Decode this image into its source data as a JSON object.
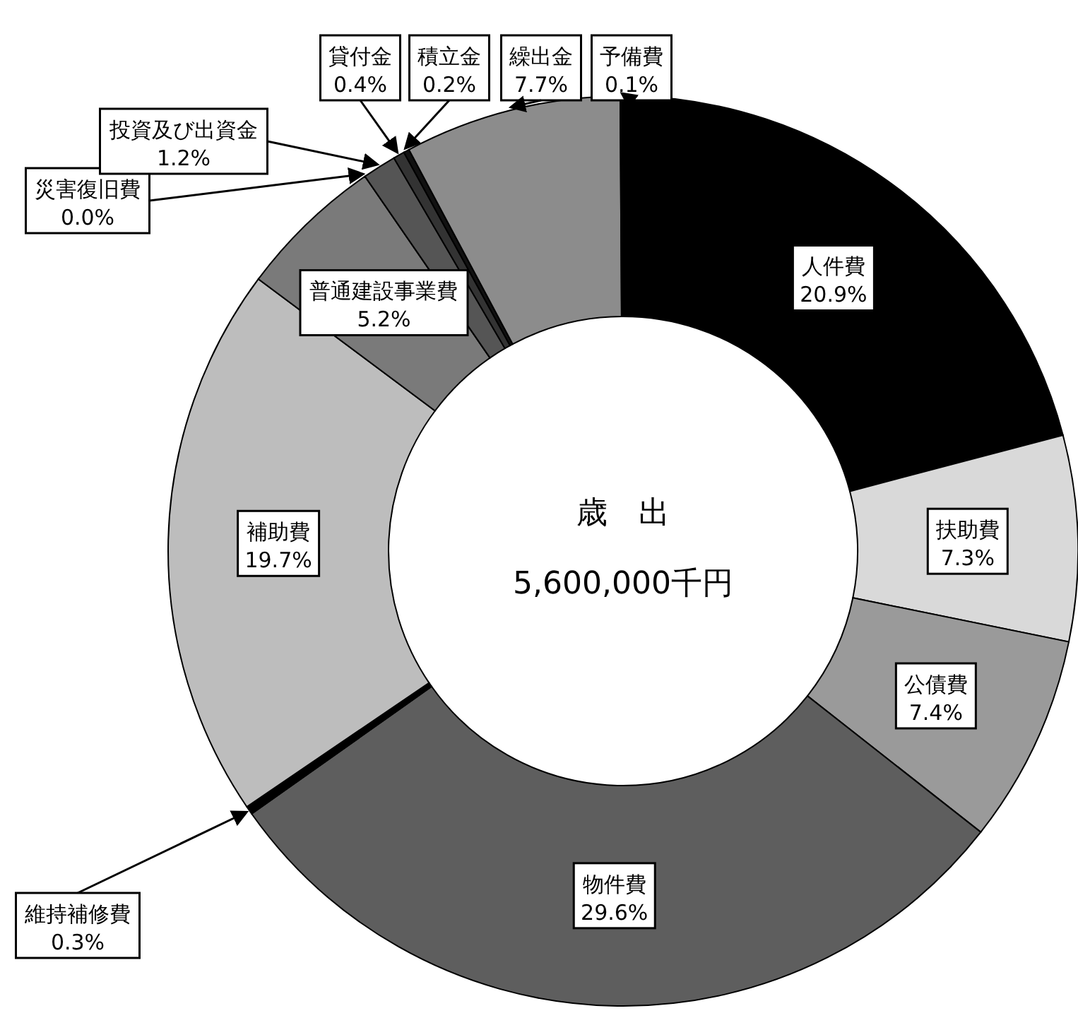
{
  "chart_data": {
    "type": "donut",
    "title": "歳　出",
    "annotations": [
      "5,600,000千円"
    ],
    "categories": [
      "人件費",
      "扶助費",
      "公債費",
      "物件費",
      "維持補修費",
      "補助費",
      "普通建設事業費",
      "災害復旧費",
      "投資及び出資金",
      "貸付金",
      "積立金",
      "繰出金",
      "予備費"
    ],
    "values": [
      20.9,
      7.3,
      7.4,
      29.6,
      0.3,
      19.7,
      5.2,
      0.0,
      1.2,
      0.4,
      0.2,
      7.7,
      0.1
    ],
    "colors": [
      "#000000",
      "#d9d9d9",
      "#9a9a9a",
      "#5e5e5e",
      "#000000",
      "#bdbdbd",
      "#7a7a7a",
      "#444444",
      "#555555",
      "#333333",
      "#111111",
      "#8c8c8c",
      "#000000"
    ],
    "value_labels": [
      "20.9%",
      "7.3%",
      "7.4%",
      "29.6%",
      "0.3%",
      "19.7%",
      "5.2%",
      "0.0%",
      "1.2%",
      "0.4%",
      "0.2%",
      "7.7%",
      "0.1%"
    ]
  }
}
